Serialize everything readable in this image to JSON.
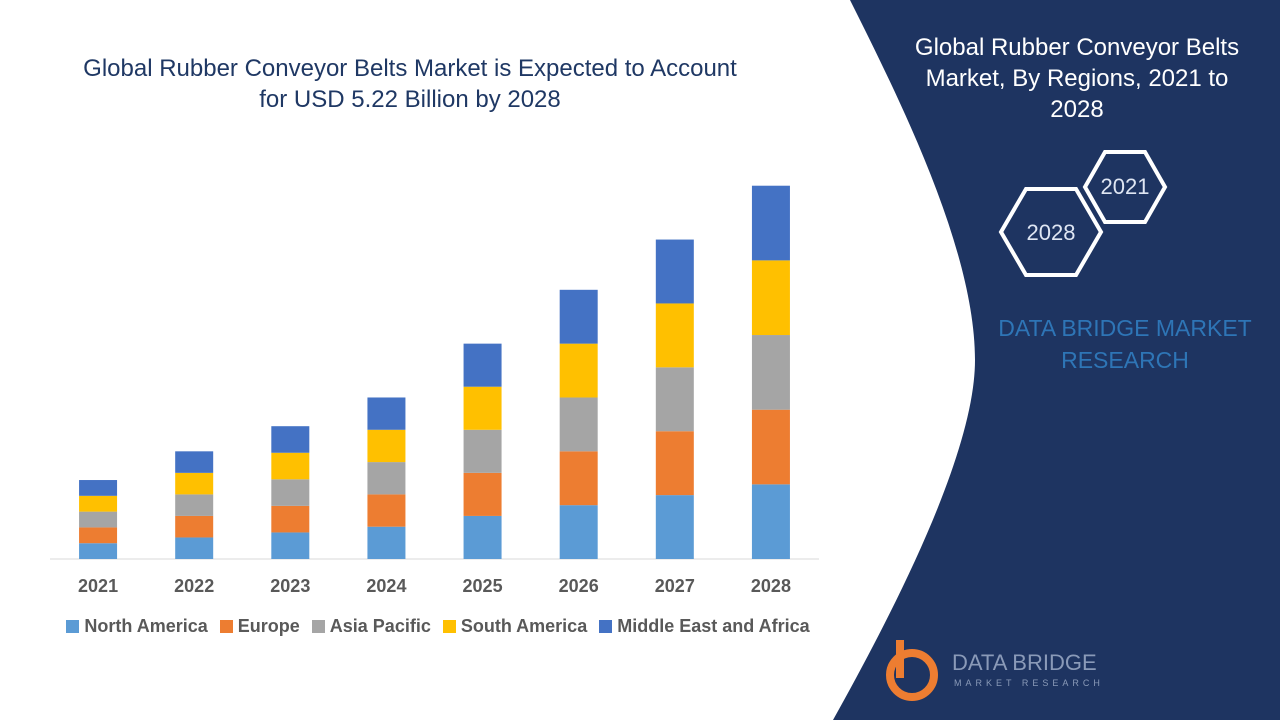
{
  "chart_data": {
    "type": "stacked-bar",
    "title": "Global Rubber Conveyor Belts Market is Expected to Account for USD 5.22 Billion by 2028",
    "categories": [
      "2021",
      "2022",
      "2023",
      "2024",
      "2025",
      "2026",
      "2027",
      "2028"
    ],
    "series": [
      {
        "name": "North America",
        "color": "#5b9bd5",
        "values": [
          0.22,
          0.3,
          0.37,
          0.45,
          0.6,
          0.75,
          0.89,
          1.04
        ]
      },
      {
        "name": "Europe",
        "color": "#ed7d31",
        "values": [
          0.22,
          0.3,
          0.37,
          0.45,
          0.6,
          0.75,
          0.89,
          1.04
        ]
      },
      {
        "name": "Asia Pacific",
        "color": "#a5a5a5",
        "values": [
          0.22,
          0.3,
          0.37,
          0.45,
          0.6,
          0.75,
          0.89,
          1.04
        ]
      },
      {
        "name": "South America",
        "color": "#ffc000",
        "values": [
          0.22,
          0.3,
          0.37,
          0.45,
          0.6,
          0.75,
          0.89,
          1.04
        ]
      },
      {
        "name": "Middle East and Africa",
        "color": "#4472c4",
        "values": [
          0.22,
          0.3,
          0.37,
          0.45,
          0.6,
          0.75,
          0.89,
          1.04
        ]
      }
    ],
    "ylim": [
      0,
      5.6
    ],
    "grid": false,
    "legend": "bottom"
  },
  "panel": {
    "title": "Global Rubber Conveyor Belts Market, By Regions, 2021 to 2028",
    "hexagons": [
      "2021",
      "2028"
    ],
    "brand": "DATA BRIDGE MARKET RESEARCH",
    "logo": {
      "name": "DATA BRIDGE",
      "tagline": "MARKET RESEARCH"
    }
  }
}
